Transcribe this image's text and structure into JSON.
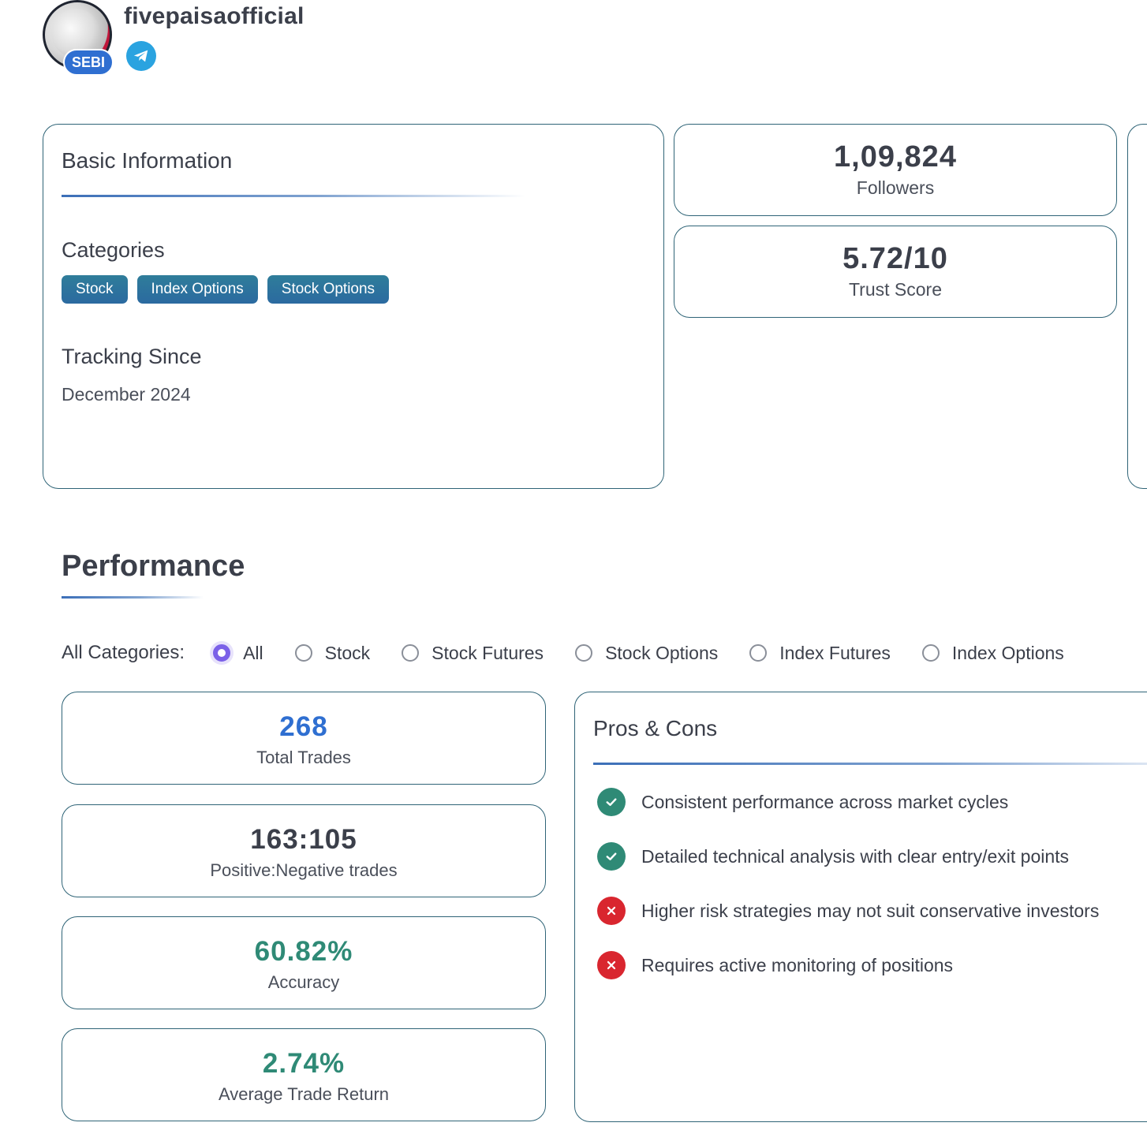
{
  "profile": {
    "username": "fivepaisaofficial",
    "badge": "SEBI",
    "social_icon": "telegram-icon"
  },
  "basic_info": {
    "title": "Basic Information",
    "categories_label": "Categories",
    "categories": [
      "Stock",
      "Index Options",
      "Stock Options"
    ],
    "tracking_label": "Tracking Since",
    "tracking_value": "December 2024"
  },
  "stats": {
    "followers_value": "1,09,824",
    "followers_label": "Followers",
    "trust_value": "5.72/10",
    "trust_label": "Trust Score"
  },
  "performance": {
    "title": "Performance",
    "filter_label": "All Categories:",
    "filters": [
      "All",
      "Stock",
      "Stock Futures",
      "Stock Options",
      "Index Futures",
      "Index Options"
    ],
    "selected_filter": "All",
    "total_trades": "268",
    "total_trades_label": "Total Trades",
    "pos_neg": "163:105",
    "pos_neg_label": "Positive:Negative trades",
    "accuracy": "60.82%",
    "accuracy_label": "Accuracy",
    "avg_return": "2.74%",
    "avg_return_label": "Average Trade Return"
  },
  "pros_cons": {
    "title": "Pros & Cons",
    "items": [
      {
        "type": "pro",
        "text": "Consistent performance across market cycles"
      },
      {
        "type": "pro",
        "text": "Detailed technical analysis with clear entry/exit points"
      },
      {
        "type": "con",
        "text": "Higher risk strategies may not suit conservative investors"
      },
      {
        "type": "con",
        "text": "Requires active monitoring of positions"
      }
    ]
  },
  "colors": {
    "accent_blue": "#2f6fd1",
    "teal": "#2f8a76",
    "red": "#d9262f",
    "radio_purple": "#7b61e8",
    "card_border": "#2f6477"
  }
}
